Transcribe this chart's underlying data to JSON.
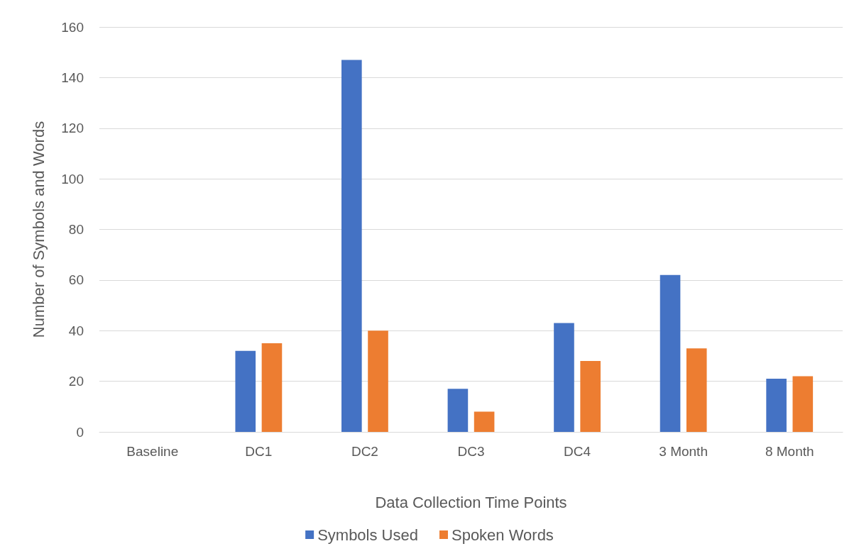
{
  "chart_data": {
    "type": "bar",
    "xlabel": "Data Collection Time Points",
    "ylabel": "Number of Symbols and Words",
    "categories": [
      "Baseline",
      "DC1",
      "DC2",
      "DC3",
      "DC4",
      "3 Month",
      "8 Month"
    ],
    "series": [
      {
        "name": "Symbols Used",
        "color": "#4472c4",
        "values": [
          0,
          32,
          147,
          17,
          43,
          62,
          21
        ]
      },
      {
        "name": "Spoken Words",
        "color": "#ed7d31",
        "values": [
          0,
          35,
          40,
          8,
          28,
          33,
          22
        ]
      }
    ],
    "ylim": [
      0,
      160
    ],
    "yticks": [
      0,
      20,
      40,
      60,
      80,
      100,
      120,
      140,
      160
    ],
    "grid": "y",
    "legend": "bottom"
  }
}
